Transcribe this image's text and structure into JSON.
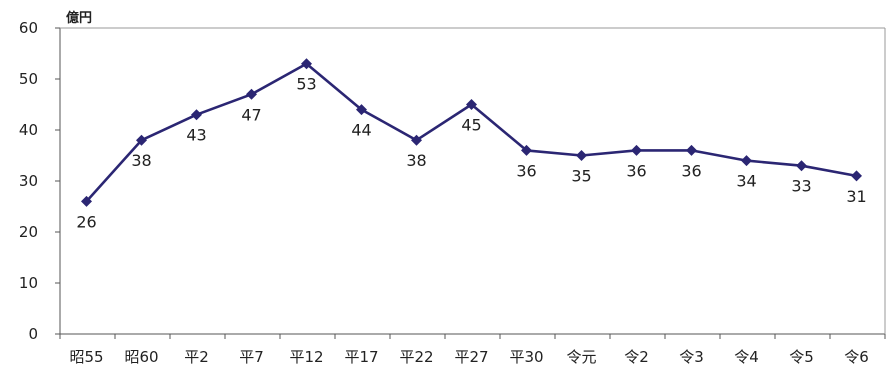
{
  "top_text": "",
  "chart_data": {
    "type": "line",
    "title": "",
    "unit_label": "億円",
    "xlabel": "",
    "ylabel": "",
    "categories": [
      "昭55",
      "昭60",
      "平2",
      "平7",
      "平12",
      "平17",
      "平22",
      "平27",
      "平30",
      "令元",
      "令2",
      "令3",
      "令4",
      "令5",
      "令6"
    ],
    "series": [
      {
        "values": [
          26,
          38,
          43,
          47,
          53,
          44,
          38,
          45,
          36,
          35,
          36,
          36,
          34,
          33,
          31
        ]
      }
    ],
    "data_labels": [
      "26",
      "38",
      "43",
      "47",
      "53",
      "44",
      "38",
      "45",
      "36",
      "35",
      "36",
      "36",
      "34",
      "33",
      "31"
    ],
    "ylim": [
      0,
      60
    ],
    "yticks": [
      0,
      10,
      20,
      30,
      40,
      50,
      60
    ],
    "grid": false,
    "legend": "none",
    "line_color": "#2b2673",
    "marker": "diamond"
  }
}
